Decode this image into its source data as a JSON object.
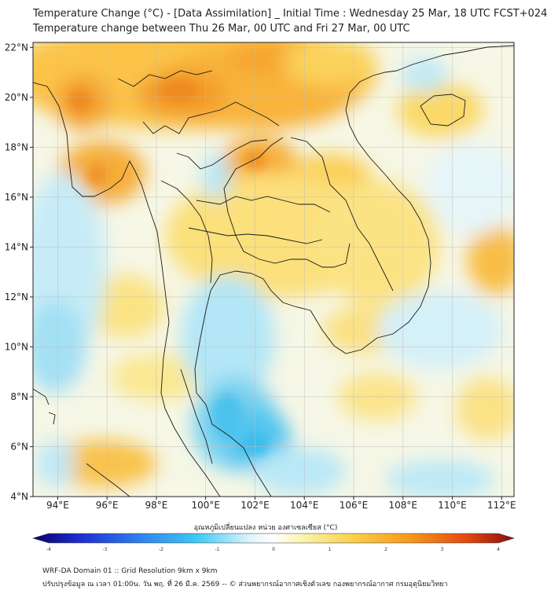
{
  "title_line1": "Temperature Change (°C) - [Data Assimilation] _ Initial Time : Wednesday 25 Mar, 18 UTC FCST+024",
  "title_line2": "Temperature change between Thu 26 Mar, 00 UTC and Fri 27 Mar, 00 UTC",
  "map": {
    "lon_range": [
      93,
      112.5
    ],
    "lat_range": [
      4,
      22.2
    ],
    "lon_ticks": [
      "94°E",
      "96°E",
      "98°E",
      "100°E",
      "102°E",
      "104°E",
      "106°E",
      "108°E",
      "110°E",
      "112°E"
    ],
    "lat_ticks": [
      "22°N",
      "20°N",
      "18°N",
      "16°N",
      "14°N",
      "12°N",
      "10°N",
      "8°N",
      "6°N",
      "4°N"
    ],
    "grid": true
  },
  "colorbar": {
    "label": "อุณหภูมิเปลี่ยนแปลง หน่วย องศาเซลเซียส (°C)",
    "ticks": [
      "-4",
      "-3",
      "-2",
      "-1",
      "0",
      "1",
      "2",
      "3",
      "4"
    ],
    "range": [
      -4,
      4
    ],
    "colors": [
      "#08006e",
      "#1f2fd0",
      "#2f7ff0",
      "#3ec8f4",
      "#dff3fb",
      "#ffffff",
      "#fbf4b0",
      "#fbd24e",
      "#f9991c",
      "#e34a12",
      "#8a0e0a"
    ]
  },
  "footer_line1": "WRF-DA Domain 01 :: Grid Resolution 9km x 9km",
  "footer_line2": "ปรับปรุงข้อมูล ณ เวลา 01:00น. วัน พฤ. ที่ 26 มี.ค. 2569 -- © ส่วนพยากรณ์อากาศเชิงตัวเลข กองพยากรณ์อากาศ กรมอุตุนิยมวิทยา"
}
